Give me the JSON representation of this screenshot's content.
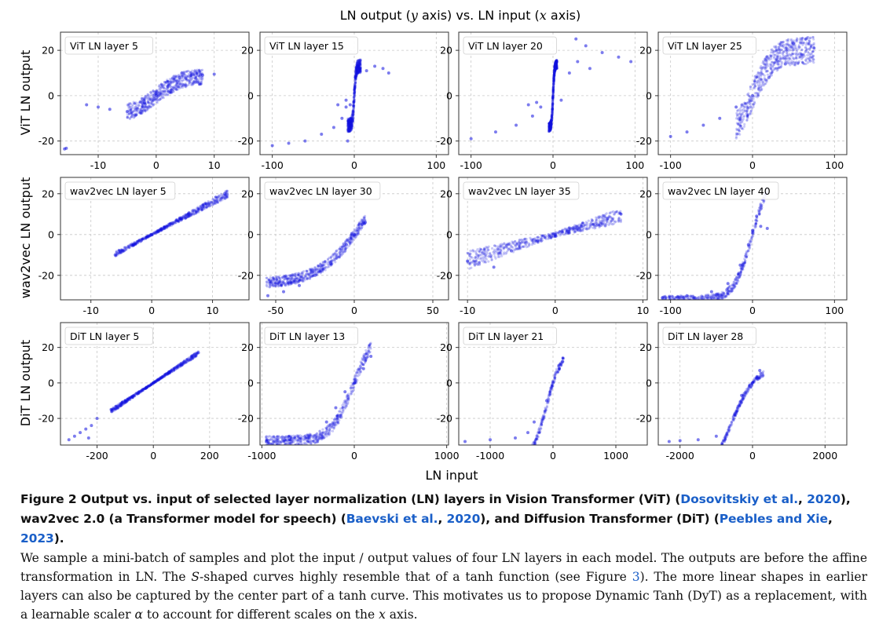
{
  "figure": {
    "suptitle_parts": [
      "LN output (",
      "y",
      " axis) vs. LN input (",
      "x",
      " axis)"
    ],
    "xlabel": "LN input",
    "row_labels": [
      "ViT LN output",
      "wav2vec LN output",
      "DiT LN output"
    ]
  },
  "chart_data": [
    {
      "type": "scatter",
      "row": 0,
      "col": 0,
      "title": "ViT LN layer 5",
      "xlim": [
        -16.5,
        16
      ],
      "ylim": [
        -26,
        28
      ],
      "xticks": [
        -10,
        0,
        10
      ],
      "yticks": [
        -20,
        0,
        20
      ],
      "grid": true,
      "shape": {
        "kind": "tanh",
        "x0": -5,
        "x1": 8,
        "amp": 9,
        "s": 0.22,
        "noise": 3.5
      },
      "points": [
        [
          -15.8,
          -23.5
        ],
        [
          -15.5,
          -23.2
        ],
        [
          -12,
          -4
        ],
        [
          -10,
          -5
        ],
        [
          -8,
          -6
        ],
        [
          -5,
          -7
        ],
        [
          -2,
          -3
        ],
        [
          0,
          0
        ],
        [
          2,
          4
        ],
        [
          4,
          8
        ],
        [
          6,
          9
        ],
        [
          8,
          9
        ],
        [
          10,
          9.5
        ]
      ]
    },
    {
      "type": "scatter",
      "row": 0,
      "col": 1,
      "title": "ViT LN layer 15",
      "xlim": [
        -115,
        115
      ],
      "ylim": [
        -26,
        28
      ],
      "xticks": [
        -100,
        0,
        100
      ],
      "yticks": [
        -20,
        0,
        20
      ],
      "grid": true,
      "shape": {
        "kind": "tanh",
        "x0": -8,
        "x1": 8,
        "amp": 13,
        "s": 0.5,
        "noise": 3
      },
      "points": [
        [
          -100,
          -22
        ],
        [
          -80,
          -21
        ],
        [
          -60,
          -20
        ],
        [
          -40,
          -17
        ],
        [
          -25,
          -14
        ],
        [
          -15,
          -10
        ],
        [
          -10,
          -5
        ],
        [
          -5,
          -4
        ],
        [
          -20,
          -4
        ],
        [
          -10,
          -2
        ],
        [
          -8,
          -20
        ],
        [
          5,
          13
        ],
        [
          15,
          11
        ],
        [
          25,
          13
        ],
        [
          35,
          12
        ],
        [
          42,
          10
        ]
      ]
    },
    {
      "type": "scatter",
      "row": 0,
      "col": 2,
      "title": "ViT LN layer 20",
      "xlim": [
        -115,
        115
      ],
      "ylim": [
        -26,
        28
      ],
      "xticks": [
        -100,
        0,
        100
      ],
      "yticks": [
        -20,
        0,
        20
      ],
      "grid": true,
      "shape": {
        "kind": "tanh",
        "x0": -5,
        "x1": 5,
        "amp": 14,
        "s": 0.6,
        "noise": 2
      },
      "points": [
        [
          -100,
          -19
        ],
        [
          -70,
          -16
        ],
        [
          -45,
          -13
        ],
        [
          -25,
          -9
        ],
        [
          -15,
          -5
        ],
        [
          -30,
          -4
        ],
        [
          -20,
          -3
        ],
        [
          10,
          -2
        ],
        [
          20,
          10
        ],
        [
          30,
          15
        ],
        [
          45,
          12
        ],
        [
          28,
          25
        ],
        [
          40,
          22
        ],
        [
          60,
          19
        ],
        [
          80,
          17
        ],
        [
          95,
          15
        ]
      ]
    },
    {
      "type": "scatter",
      "row": 0,
      "col": 3,
      "title": "ViT LN layer 25",
      "xlim": [
        -115,
        115
      ],
      "ylim": [
        -26,
        28
      ],
      "xticks": [
        -100,
        0,
        100
      ],
      "yticks": [
        -20,
        0,
        20
      ],
      "grid": true,
      "shape": {
        "kind": "blob",
        "x0": -20,
        "x1": 75,
        "amp": 20,
        "s": 0.04,
        "noise": 6
      },
      "points": [
        [
          -100,
          -18
        ],
        [
          -80,
          -16
        ],
        [
          -60,
          -13
        ],
        [
          -40,
          -10
        ],
        [
          -20,
          -5
        ],
        [
          0,
          0
        ],
        [
          20,
          8
        ],
        [
          40,
          14
        ],
        [
          60,
          18
        ],
        [
          75,
          21
        ],
        [
          65,
          25
        ],
        [
          50,
          23
        ]
      ]
    },
    {
      "type": "scatter",
      "row": 1,
      "col": 0,
      "title": "wav2vec LN layer 5",
      "xlim": [
        -15,
        16
      ],
      "ylim": [
        -32,
        28
      ],
      "xticks": [
        -10,
        0,
        10
      ],
      "yticks": [
        -20,
        0,
        20
      ],
      "grid": true,
      "shape": {
        "kind": "linear",
        "x0": -6,
        "x1": 12.5,
        "k": 1.6,
        "noise": 1.5
      },
      "points": [
        [
          -6,
          -10
        ],
        [
          -3,
          -5
        ],
        [
          0,
          0
        ],
        [
          3,
          5
        ],
        [
          6,
          10
        ],
        [
          9,
          15
        ],
        [
          12,
          20
        ]
      ]
    },
    {
      "type": "scatter",
      "row": 1,
      "col": 1,
      "title": "wav2vec LN layer 30",
      "xlim": [
        -60,
        60
      ],
      "ylim": [
        -32,
        28
      ],
      "xticks": [
        -50,
        0,
        50
      ],
      "yticks": [
        -20,
        0,
        20
      ],
      "grid": true,
      "shape": {
        "kind": "tanh",
        "x0": -56,
        "x1": 7,
        "amp": 32,
        "s": 0.035,
        "c": 7,
        "noise": 2.5
      },
      "points": [
        [
          -55,
          -30
        ],
        [
          -45,
          -28
        ],
        [
          -35,
          -25
        ],
        [
          -25,
          -20
        ],
        [
          -15,
          -14
        ],
        [
          -5,
          -5
        ],
        [
          0,
          0
        ],
        [
          5,
          5
        ],
        [
          7,
          6
        ]
      ]
    },
    {
      "type": "scatter",
      "row": 1,
      "col": 2,
      "title": "wav2vec LN layer 35",
      "xlim": [
        -11,
        10.5
      ],
      "ylim": [
        -32,
        28
      ],
      "xticks": [
        -10,
        0,
        10
      ],
      "yticks": [
        -20,
        0,
        20
      ],
      "grid": true,
      "shape": {
        "kind": "linear",
        "x0": -10,
        "x1": 7.5,
        "k": 1.25,
        "noise": 3.5
      },
      "points": [
        [
          -10,
          -13
        ],
        [
          -7,
          -16
        ],
        [
          -5,
          -8
        ],
        [
          -2,
          -3
        ],
        [
          0,
          0
        ],
        [
          3,
          4
        ],
        [
          6,
          8
        ],
        [
          7.5,
          10
        ]
      ]
    },
    {
      "type": "scatter",
      "row": 1,
      "col": 3,
      "title": "wav2vec LN layer 40",
      "xlim": [
        -115,
        115
      ],
      "ylim": [
        -32,
        28
      ],
      "xticks": [
        -100,
        0,
        100
      ],
      "yticks": [
        -20,
        0,
        20
      ],
      "grid": true,
      "shape": {
        "kind": "tanh",
        "x0": -110,
        "x1": 18,
        "amp": 32,
        "s": 0.045,
        "c": 0,
        "noise": 2
      },
      "points": [
        [
          -110,
          -31
        ],
        [
          -80,
          -30
        ],
        [
          -50,
          -28
        ],
        [
          -30,
          -24
        ],
        [
          -15,
          -15
        ],
        [
          -5,
          -5
        ],
        [
          0,
          2
        ],
        [
          5,
          9
        ],
        [
          10,
          4
        ],
        [
          18,
          3
        ]
      ]
    },
    {
      "type": "scatter",
      "row": 2,
      "col": 0,
      "title": "DiT LN layer 5",
      "xlim": [
        -330,
        340
      ],
      "ylim": [
        -35,
        34
      ],
      "xticks": [
        -200,
        0,
        200
      ],
      "yticks": [
        -20,
        0,
        20
      ],
      "grid": true,
      "shape": {
        "kind": "linear",
        "x0": -150,
        "x1": 160,
        "k": 0.105,
        "noise": 1
      },
      "points": [
        [
          -300,
          -32
        ],
        [
          -280,
          -30
        ],
        [
          -260,
          -28
        ],
        [
          -240,
          -26
        ],
        [
          -220,
          -24
        ],
        [
          -230,
          -31
        ],
        [
          -200,
          -20
        ],
        [
          -150,
          -15
        ],
        [
          -100,
          -10
        ],
        [
          0,
          0
        ],
        [
          100,
          10
        ],
        [
          160,
          17
        ]
      ]
    },
    {
      "type": "scatter",
      "row": 2,
      "col": 1,
      "title": "DiT LN layer 13",
      "xlim": [
        -1020,
        1020
      ],
      "ylim": [
        -35,
        34
      ],
      "xticks": [
        -1000,
        0,
        1000
      ],
      "yticks": [
        -20,
        0,
        20
      ],
      "grid": true,
      "shape": {
        "kind": "tanh",
        "x0": -960,
        "x1": 180,
        "amp": 33,
        "s": 0.004,
        "c": 0,
        "noise": 3
      },
      "points": [
        [
          -950,
          -33
        ],
        [
          -700,
          -32
        ],
        [
          -500,
          -31
        ],
        [
          -300,
          -22
        ],
        [
          -200,
          -14
        ],
        [
          -100,
          -5
        ],
        [
          0,
          0
        ],
        [
          100,
          8
        ],
        [
          180,
          15
        ]
      ]
    },
    {
      "type": "scatter",
      "row": 2,
      "col": 2,
      "title": "DiT LN layer 21",
      "xlim": [
        -1500,
        1500
      ],
      "ylim": [
        -35,
        34
      ],
      "xticks": [
        -1000,
        0,
        1000
      ],
      "yticks": [
        -20,
        0,
        20
      ],
      "grid": true,
      "shape": {
        "kind": "tanh",
        "x0": -1400,
        "x1": 180,
        "amp": 33,
        "s": 0.004,
        "c": -100,
        "noise": 2
      },
      "points": [
        [
          -1400,
          -33
        ],
        [
          -1000,
          -32
        ],
        [
          -600,
          -31
        ],
        [
          -400,
          -28
        ],
        [
          -300,
          -22
        ],
        [
          -100,
          -10
        ],
        [
          0,
          0
        ],
        [
          100,
          8
        ],
        [
          150,
          12
        ]
      ]
    },
    {
      "type": "scatter",
      "row": 2,
      "col": 3,
      "title": "DiT LN layer 28",
      "xlim": [
        -2600,
        2600
      ],
      "ylim": [
        -35,
        34
      ],
      "xticks": [
        -2000,
        0,
        2000
      ],
      "yticks": [
        -20,
        0,
        20
      ],
      "grid": true,
      "shape": {
        "kind": "tanh",
        "x0": -2300,
        "x1": 300,
        "amp": 33,
        "s": 0.0015,
        "c": -600,
        "noise": 1.5
      },
      "points": [
        [
          -2300,
          -33
        ],
        [
          -2000,
          -32.5
        ],
        [
          -1500,
          -32
        ],
        [
          -1000,
          -30
        ],
        [
          -300,
          -7
        ],
        [
          0,
          0
        ],
        [
          200,
          7
        ]
      ]
    }
  ],
  "caption": {
    "bold_parts": [
      {
        "t": "Figure 2  Output vs. input of selected layer normalization (LN) layers in Vision Transformer (ViT) (",
        "cite": false
      },
      {
        "t": "Dosovitskiy et al.",
        "cite": true
      },
      {
        "t": ", ",
        "cite": false
      },
      {
        "t": "2020",
        "cite": true
      },
      {
        "t": "), wav2vec 2.0 (a Transformer model for speech) (",
        "cite": false
      },
      {
        "t": "Baevski et al.",
        "cite": true
      },
      {
        "t": ", ",
        "cite": false
      },
      {
        "t": "2020",
        "cite": true
      },
      {
        "t": "), and Diffusion Transformer (DiT) (",
        "cite": false
      },
      {
        "t": "Peebles and Xie",
        "cite": true
      },
      {
        "t": ", ",
        "cite": false
      },
      {
        "t": "2023",
        "cite": true
      },
      {
        "t": ").",
        "cite": false
      }
    ],
    "body_parts": [
      {
        "t": "We sample a mini-batch of samples and plot the input / output values of four LN layers in each model. The outputs are before the affine transformation in LN. The ",
        "i": false
      },
      {
        "t": "S",
        "i": true
      },
      {
        "t": "-shaped curves highly resemble that of a tanh function (see Figure ",
        "i": false
      },
      {
        "t": "3",
        "cite": true
      },
      {
        "t": "). The more linear shapes in earlier layers can also be captured by the center part of a tanh curve. This motivates us to propose Dynamic Tanh (DyT) as a replacement, with a learnable scaler ",
        "i": false
      },
      {
        "t": "α",
        "i": true
      },
      {
        "t": " to account for different scales on the ",
        "i": false
      },
      {
        "t": "x",
        "i": true
      },
      {
        "t": " axis.",
        "i": false
      }
    ]
  },
  "colors": {
    "points": "#1010e0",
    "frame": "#333333",
    "grid": "#c8c8c8",
    "cite": "#1a5fc8"
  }
}
